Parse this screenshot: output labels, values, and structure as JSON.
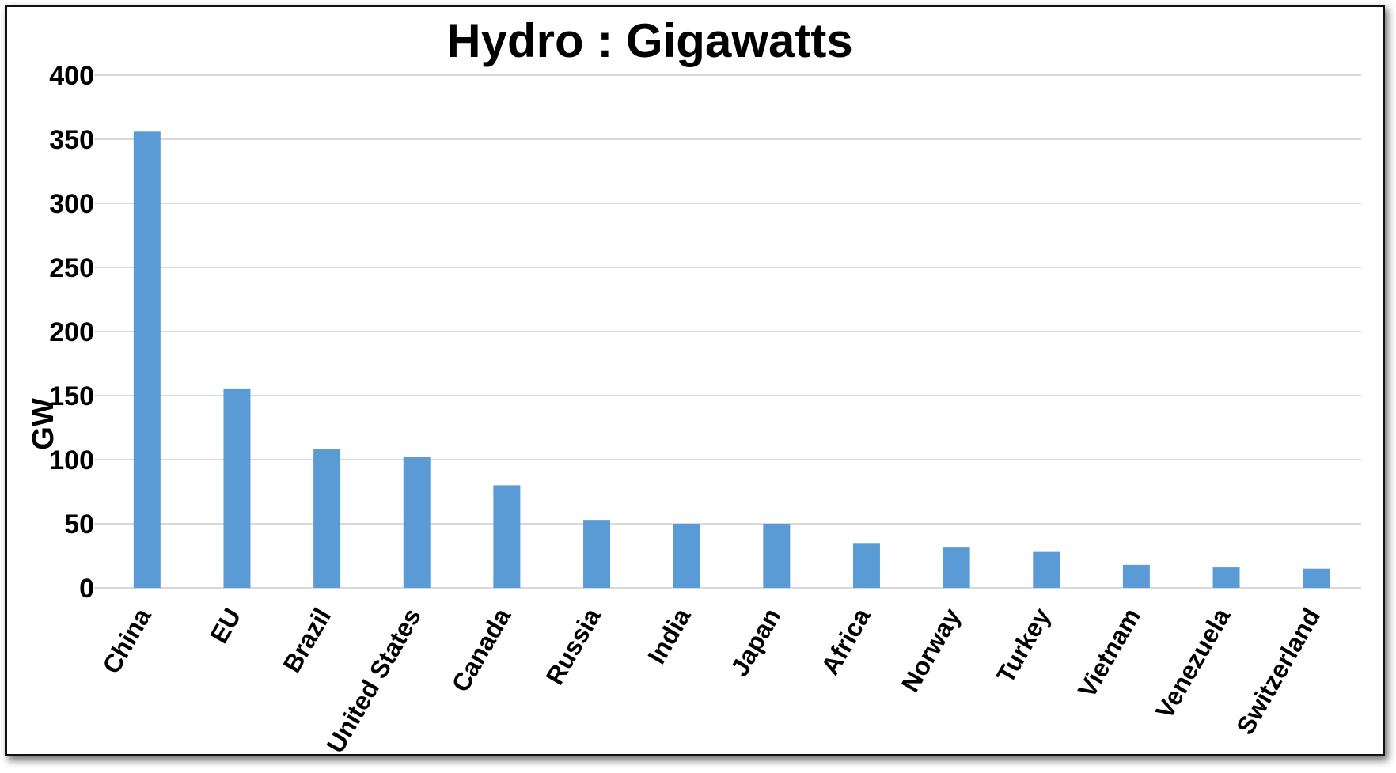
{
  "chart_data": {
    "type": "bar",
    "title": "Hydro : Gigawatts",
    "xlabel": "",
    "ylabel": "GW",
    "ylim": [
      0,
      400
    ],
    "yticks": [
      0,
      50,
      100,
      150,
      200,
      250,
      300,
      350,
      400
    ],
    "grid": true,
    "bar_color": "#5b9bd5",
    "categories": [
      "China",
      "EU",
      "Brazil",
      "United States",
      "Canada",
      "Russia",
      "India",
      "Japan",
      "Africa",
      "Norway",
      "Turkey",
      "Vietnam",
      "Venezuela",
      "Switzerland"
    ],
    "values": [
      356,
      155,
      108,
      102,
      80,
      53,
      50,
      50,
      35,
      32,
      28,
      18,
      16,
      15
    ]
  }
}
